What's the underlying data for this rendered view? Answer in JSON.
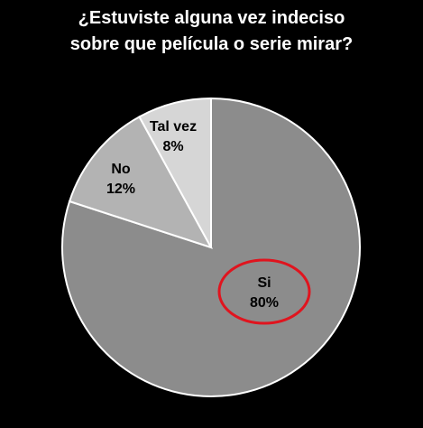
{
  "chart_data": {
    "type": "pie",
    "title_lines": [
      "¿Estuviste alguna vez indeciso",
      "sobre que película o serie mirar?"
    ],
    "slices": [
      {
        "name": "Si",
        "value": 80,
        "pct_label": "80%",
        "color": "#8c8c8c",
        "highlighted": true
      },
      {
        "name": "No",
        "value": 12,
        "pct_label": "12%",
        "color": "#b3b3b3",
        "highlighted": false
      },
      {
        "name": "Tal vez",
        "value": 8,
        "pct_label": "8%",
        "color": "#d6d6d6",
        "highlighted": false
      }
    ],
    "start_angle": "12 o'clock",
    "direction": "clockwise",
    "legend": "none",
    "background": "#000000",
    "highlight_color": "#e0141e"
  }
}
